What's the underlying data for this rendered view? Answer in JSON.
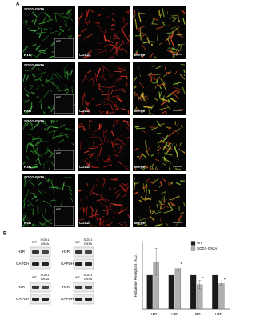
{
  "panel_a": {
    "label": "A",
    "stain": "CD11b",
    "merge": "Merge",
    "inset": "WT",
    "rows": [
      {
        "genotype": "SOD1-G93A",
        "receptor": "H1R"
      },
      {
        "genotype": "SOD1-G93A",
        "receptor": "H2R"
      },
      {
        "genotype": "SOD1-G93A",
        "receptor": "H3R"
      },
      {
        "genotype": "SOD1-G93A",
        "receptor": "H4R"
      }
    ]
  },
  "panel_b": {
    "label": "B",
    "blots": [
      {
        "wt": "WT",
        "mutant": [
          "SOD1",
          "G93A"
        ],
        "receptor": "H1R",
        "control": "GAPDH"
      },
      {
        "wt": "WT",
        "mutant": [
          "SOD1",
          "G93A"
        ],
        "receptor": "H2R",
        "control": "GAPDH"
      },
      {
        "wt": "WT",
        "mutant": [
          "SOD1",
          "G93A"
        ],
        "receptor": "H3R",
        "control": "GAPDH"
      },
      {
        "wt": "WT",
        "mutant": [
          "SOD1",
          "G93A"
        ],
        "receptor": "H4R",
        "control": "GAPDH"
      }
    ]
  },
  "chart_data": {
    "type": "bar",
    "y_label": "Histamine Receptors (A.U.)",
    "categories": [
      "H1R",
      "H2R",
      "H3R",
      "H4R"
    ],
    "series": [
      {
        "name": "WT",
        "color": "#1a1a1a",
        "values": [
          1,
          1,
          1,
          1
        ]
      },
      {
        "name": "SOD1-G93A",
        "color": "#b0b0b0",
        "values": [
          1.4,
          1.2,
          0.72,
          0.75
        ],
        "errors": [
          0.4,
          0.07,
          0.12,
          0.05
        ],
        "significance": [
          null,
          "*",
          "*",
          "*"
        ]
      }
    ],
    "ylim": [
      0,
      2
    ],
    "legend": "top-right"
  }
}
